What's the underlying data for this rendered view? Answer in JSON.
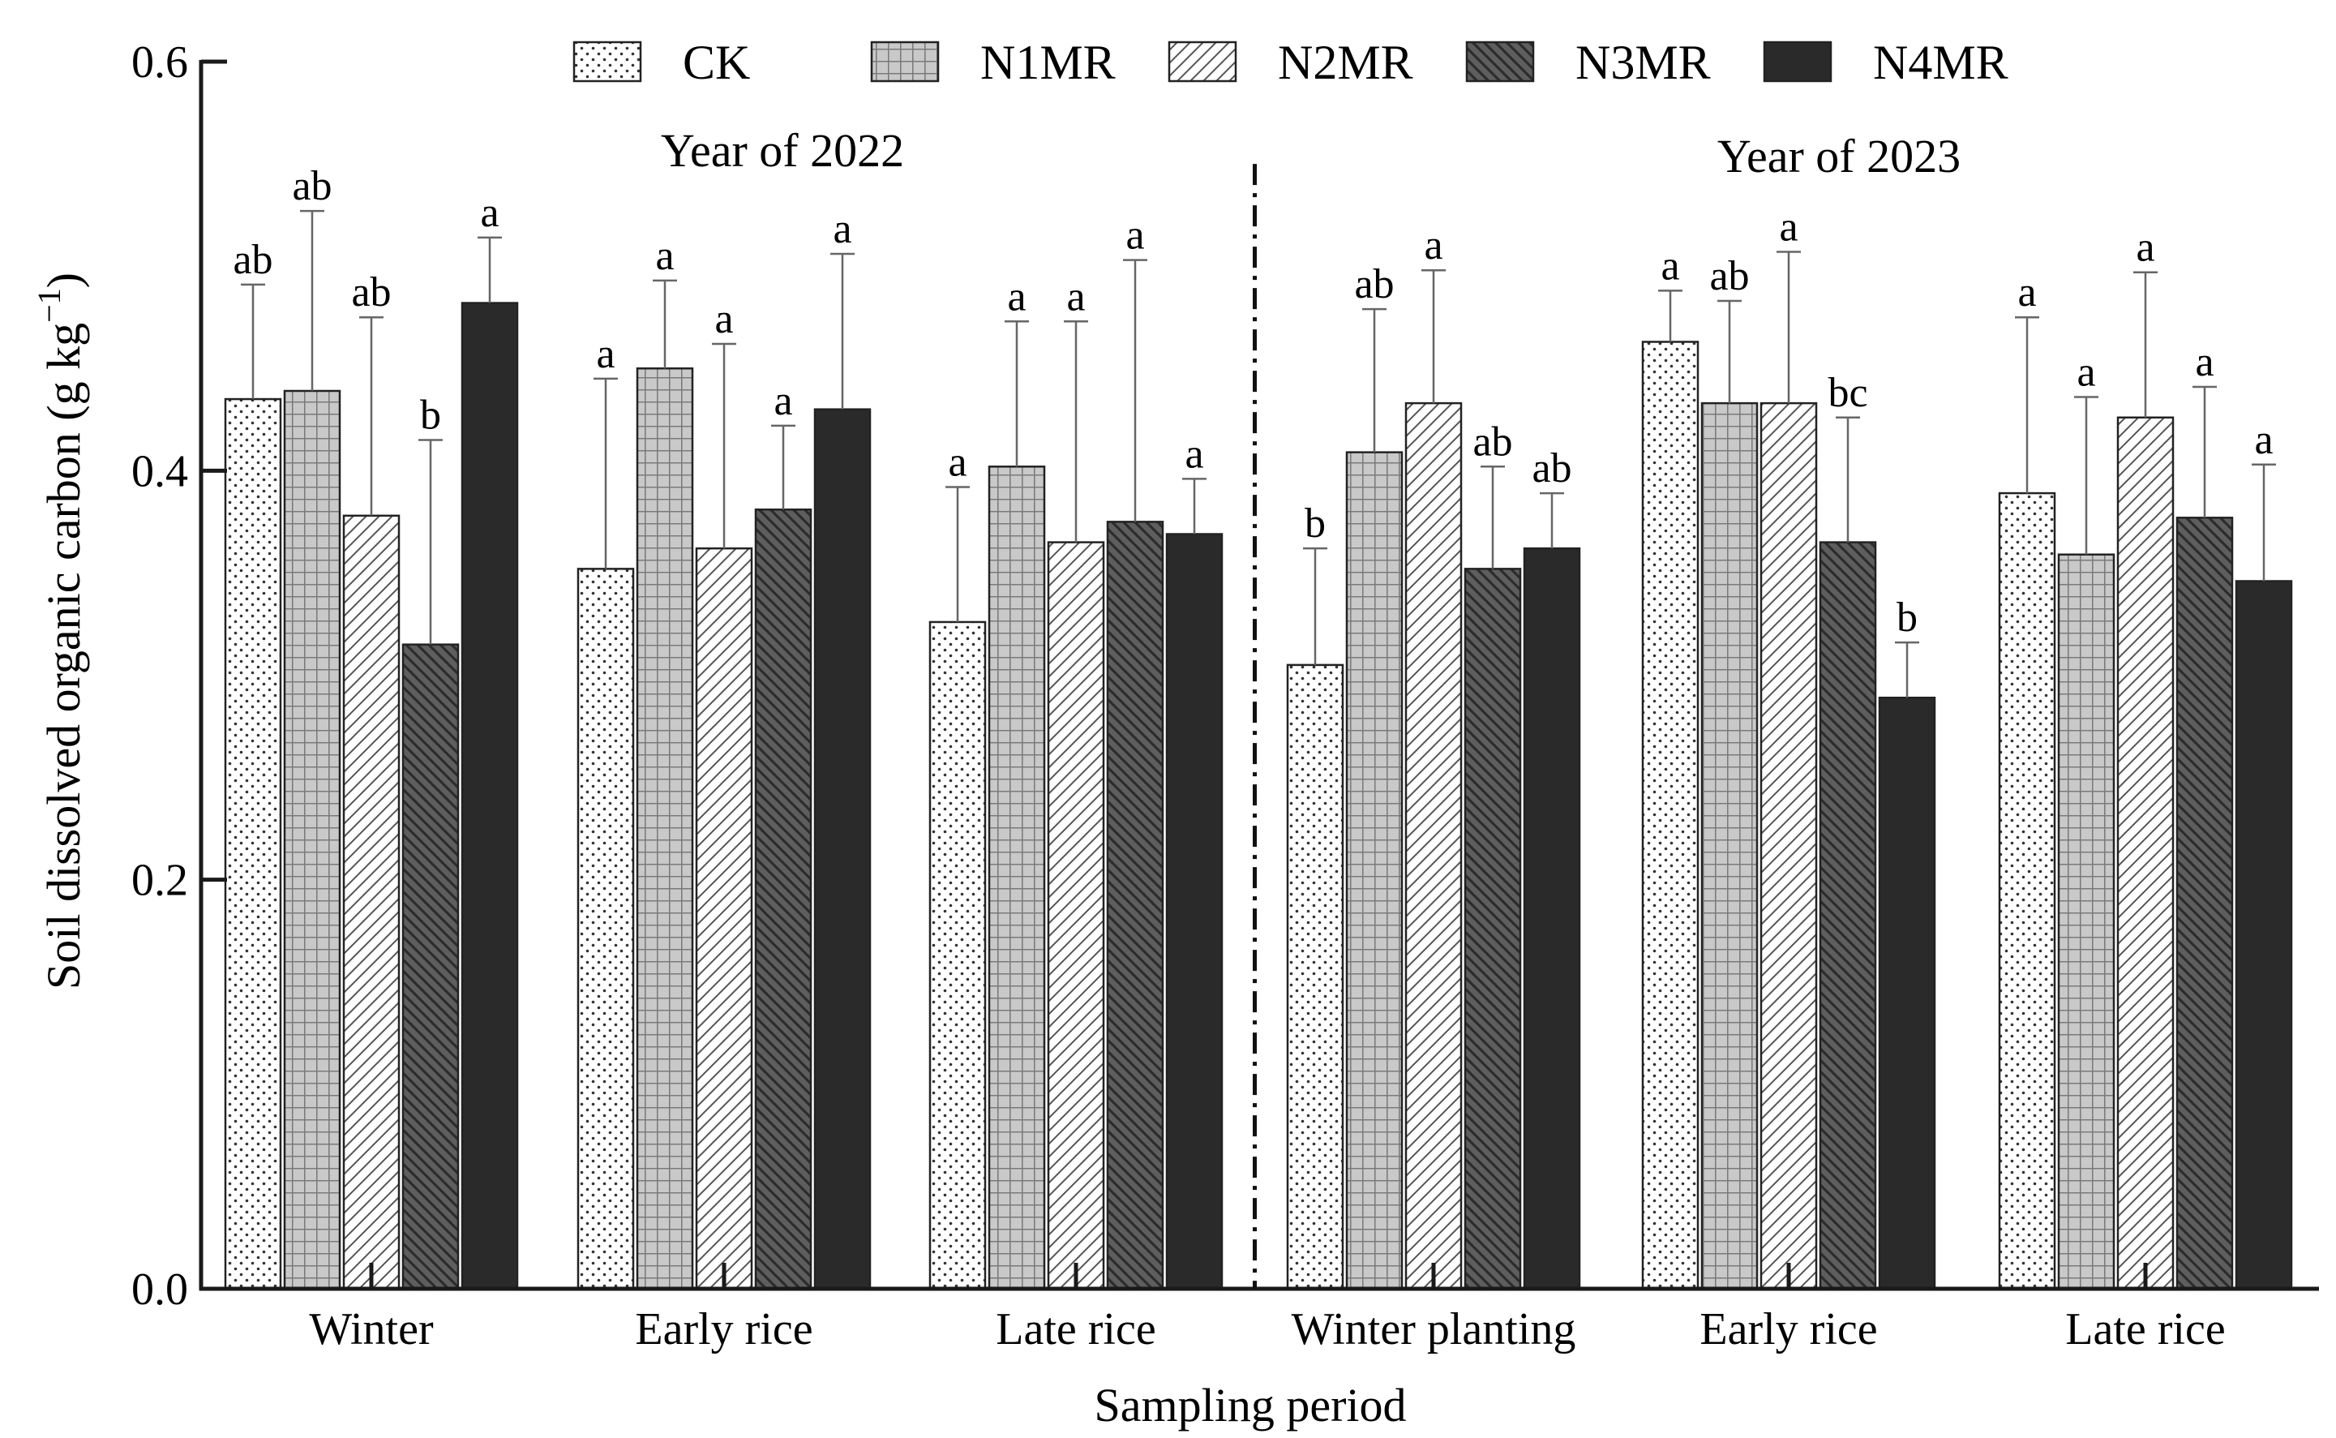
{
  "chart_data": {
    "type": "bar",
    "title": "",
    "xlabel": "Sampling period",
    "ylabel_main": "Soil dissolved organic carbon (g kg",
    "ylabel_sup": "−1",
    "ylabel_close": ")",
    "ylim": [
      0.0,
      0.6
    ],
    "yticks": [
      "0.0",
      "0.2",
      "0.4",
      "0.6"
    ],
    "grid": false,
    "legend_position": "top",
    "categories": [
      "Winter",
      "Early rice",
      "Late rice",
      "Winter planting",
      "Early rice",
      "Late rice"
    ],
    "year_labels": [
      {
        "text": "Year of 2022",
        "covers": "Winter, Early rice, Late rice"
      },
      {
        "text": "Year of 2023",
        "covers": "Winter planting, Early rice, Late rice"
      }
    ],
    "series": [
      {
        "name": "CK",
        "pattern": "dots",
        "values": [
          0.435,
          0.352,
          0.326,
          0.305,
          0.463,
          0.389
        ],
        "errors": [
          0.056,
          0.093,
          0.066,
          0.057,
          0.025,
          0.086
        ],
        "letters": [
          "ab",
          "a",
          "a",
          "b",
          "a",
          "a"
        ]
      },
      {
        "name": "N1MR",
        "pattern": "grid",
        "values": [
          0.439,
          0.45,
          0.402,
          0.409,
          0.433,
          0.359
        ],
        "errors": [
          0.088,
          0.043,
          0.071,
          0.07,
          0.05,
          0.077
        ],
        "letters": [
          "ab",
          "a",
          "a",
          "ab",
          "ab",
          "a"
        ]
      },
      {
        "name": "N2MR",
        "pattern": "diag-light",
        "values": [
          0.378,
          0.362,
          0.365,
          0.433,
          0.433,
          0.426
        ],
        "errors": [
          0.097,
          0.1,
          0.108,
          0.065,
          0.074,
          0.071
        ],
        "letters": [
          "ab",
          "a",
          "a",
          "a",
          "a",
          "a"
        ]
      },
      {
        "name": "N3MR",
        "pattern": "diag-dark",
        "values": [
          0.315,
          0.381,
          0.375,
          0.352,
          0.365,
          0.377
        ],
        "errors": [
          0.1,
          0.041,
          0.128,
          0.05,
          0.061,
          0.064
        ],
        "letters": [
          "b",
          "a",
          "a",
          "ab",
          "bc",
          "a"
        ]
      },
      {
        "name": "N4MR",
        "pattern": "solid",
        "values": [
          0.482,
          0.43,
          0.369,
          0.362,
          0.289,
          0.346
        ],
        "errors": [
          0.032,
          0.076,
          0.027,
          0.027,
          0.027,
          0.057
        ],
        "letters": [
          "a",
          "a",
          "a",
          "ab",
          "b",
          "a"
        ]
      }
    ]
  },
  "colors": {
    "axis": "#1a1a1a",
    "bar_outline": "#222222",
    "grid_fill": "#c9c9c9",
    "diag_dark_fill": "#5e5e5e",
    "solid_fill": "#2a2a2a"
  }
}
